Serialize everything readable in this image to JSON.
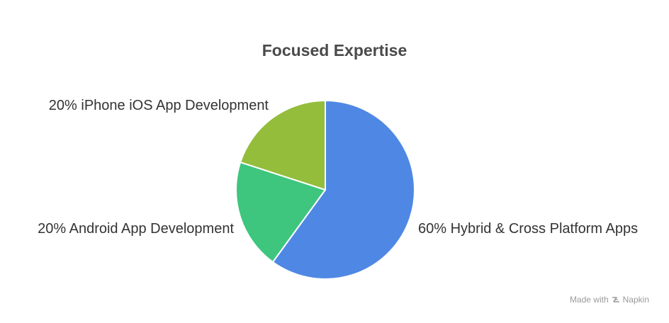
{
  "chart_data": {
    "type": "pie",
    "title": "Focused Expertise",
    "slices": [
      {
        "label": "60% Hybrid & Cross Platform Apps",
        "value": 60,
        "color": "#4f88e4"
      },
      {
        "label": "20% Android App Development",
        "value": 20,
        "color": "#3ec57e"
      },
      {
        "label": "20% iPhone iOS App Development",
        "value": 20,
        "color": "#93bd3b"
      }
    ]
  },
  "watermark": {
    "text": "Made with",
    "brand": "Napkin",
    "icon": "napkin-logo-icon"
  }
}
